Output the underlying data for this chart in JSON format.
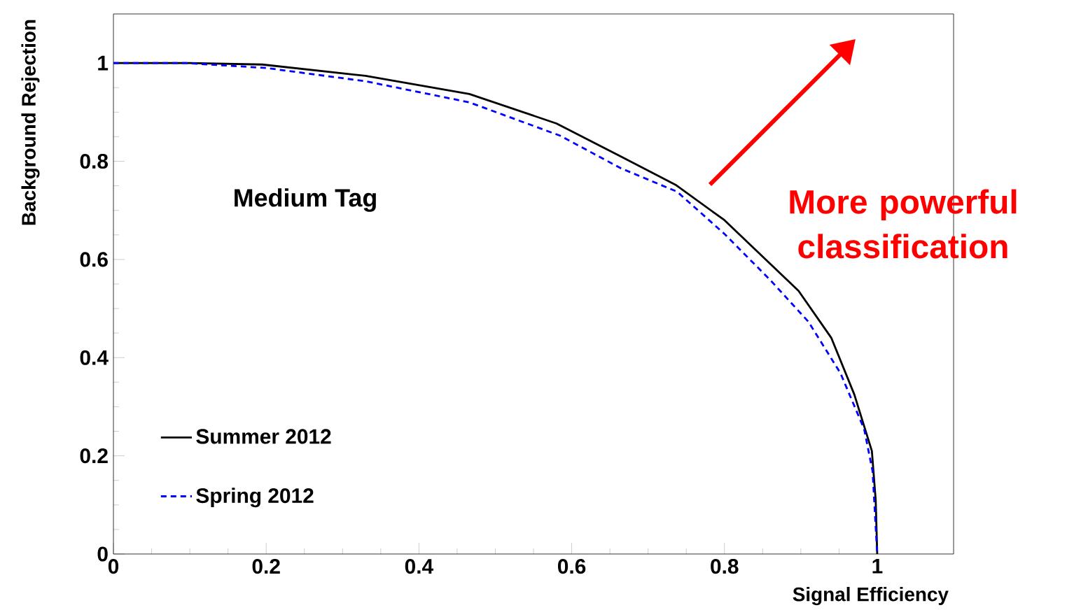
{
  "chart_data": {
    "type": "line",
    "xlabel": "Signal Efficiency",
    "ylabel": "Background Rejection",
    "annotations": [
      "Medium Tag",
      "More powerful classification"
    ],
    "xlim": [
      0,
      1.1
    ],
    "ylim": [
      0,
      1.1
    ],
    "xticks": [
      0,
      0.2,
      0.4,
      0.6,
      0.8,
      1
    ],
    "yticks": [
      0,
      0.2,
      0.4,
      0.6,
      0.8,
      1
    ],
    "grid": false,
    "legend": "bottom left",
    "marker": "none",
    "series": [
      {
        "name": "Summer 2012",
        "color": "#000000",
        "line_style": "solid",
        "x": [
          0,
          0.1,
          0.195,
          0.33,
          0.466,
          0.58,
          0.664,
          0.736,
          0.8,
          0.897,
          0.94,
          0.97,
          0.993,
          0.998,
          1.0
        ],
        "values": [
          1,
          1,
          0.997,
          0.974,
          0.937,
          0.877,
          0.81,
          0.752,
          0.68,
          0.536,
          0.44,
          0.325,
          0.21,
          0.11,
          0
        ]
      },
      {
        "name": "Spring 2012",
        "color": "#0000ff",
        "line_style": "dashed",
        "x": [
          0,
          0.095,
          0.2,
          0.33,
          0.466,
          0.585,
          0.664,
          0.738,
          0.8,
          0.86,
          0.91,
          0.952,
          0.983,
          0.994,
          1.0
        ],
        "values": [
          1,
          1,
          0.99,
          0.963,
          0.92,
          0.852,
          0.786,
          0.738,
          0.652,
          0.558,
          0.473,
          0.368,
          0.254,
          0.168,
          0
        ]
      }
    ]
  }
}
